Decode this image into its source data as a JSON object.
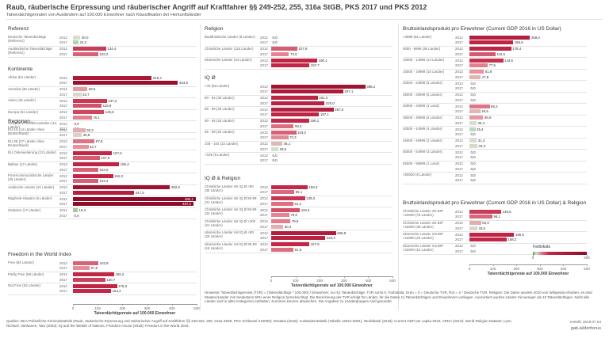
{
  "header": {
    "title": "Raub, räuberische Erpressung und räuberischer Angriff auf Kraftfahrer §§ 249-252, 255, 316a StGB, PKS 2017 und PKS 2012",
    "subtitle": "Tatverdächtigenraten von Ausländern auf 100.000 Einwohner nach Klassifikation der Herkunftsländer"
  },
  "panels": [
    {
      "title": "Referenz",
      "groups": [
        {
          "label": "Deutsche Tatverdächtige (Referenz)",
          "years": [
            2012,
            2017
          ],
          "values": [
            30.0,
            22.3
          ],
          "value_labels": [
            "30,0",
            "22,3"
          ]
        },
        {
          "label": "Ausländische Tatverdächtige (Referenz)",
          "years": [
            2012,
            2017
          ],
          "values": [
            134.4,
            102.2
          ],
          "value_labels": [
            "134,4",
            "102,2"
          ]
        }
      ]
    },
    {
      "title": "Kontinente",
      "groups": [
        {
          "label": "Afrika (54 Länder)",
          "years": [
            2012,
            2017
          ],
          "values": [
            318.4,
            424.5
          ],
          "value_labels": [
            "318,4",
            "424,5"
          ]
        },
        {
          "label": "Amerika (35 Länder)",
          "years": [
            2012,
            2017
          ],
          "values": [
            58.5,
            33.7
          ],
          "value_labels": [
            "58,5",
            "33,7"
          ]
        },
        {
          "label": "Asien (48 Länder)",
          "years": [
            2012,
            2017
          ],
          "values": [
            137.2,
            115.9
          ],
          "value_labels": [
            "137,2",
            "115,9"
          ]
        },
        {
          "label": "Europa (51 Länder)",
          "years": [
            2012,
            2017
          ],
          "values": [
            125.5,
            76.1
          ],
          "value_labels": [
            "125,5",
            "76,1"
          ]
        },
        {
          "label": "Ozeanien/Pazifik/Australien (13 Länder)",
          "years": [
            2012,
            2017
          ],
          "values": [
            0,
            0
          ],
          "value_labels": [
            "0,0",
            "0,0"
          ]
        }
      ]
    },
    {
      "title": "Regionen",
      "groups": [
        {
          "label": "EU-15 (14 Länder ohne Deutschland)",
          "years": [
            2012,
            2017
          ],
          "values": [
            50.3,
            35.8
          ],
          "value_labels": [
            "50,3",
            "35,8"
          ]
        },
        {
          "label": "EU-28 (27 Länder ohne Deutschland)",
          "years": [
            2012,
            2017
          ],
          "values": [
            87.8,
            62.7
          ],
          "value_labels": [
            "87,8",
            "62,7"
          ]
        },
        {
          "label": "EU Osterweiterung (13 Länder)",
          "years": [
            2012,
            2017
          ],
          "values": [
            157.6,
            107.9
          ],
          "value_labels": [
            "157,6",
            "107,9"
          ]
        },
        {
          "label": "Balkan (12 Länder)",
          "years": [
            2012,
            2017
          ],
          "values": [
            186.4,
            102.5
          ],
          "value_labels": [
            "186,4",
            "102,5"
          ]
        },
        {
          "label": "Post-Kommunistische Länder (26 Länder)",
          "years": [
            2012,
            2017
          ],
          "values": [
            162.0,
            102.4
          ],
          "value_labels": [
            "162,0",
            "102,4"
          ]
        },
        {
          "label": "Arabische Länder (21 Länder)",
          "years": [
            2012,
            2017
          ],
          "values": [
            392.6,
            247.5
          ],
          "value_labels": [
            "392,6",
            "247,5"
          ]
        },
        {
          "label": "Maghreb-Staaten (5 Länder)",
          "years": [
            2012,
            2017
          ],
          "values": [
            496.1,
            487.2
          ],
          "value_labels": [
            "496,1",
            "487,2"
          ]
        },
        {
          "label": "Ostasien (17 Länder)",
          "years": [
            2012,
            2017
          ],
          "values": [
            19.3,
            0
          ],
          "value_labels": [
            "19,3",
            "0,0"
          ]
        }
      ]
    },
    {
      "title": "Freedom in the World Index",
      "groups": [
        {
          "label": "Free (84 Länder)",
          "years": [
            2012,
            2017
          ],
          "values": [
            102.8,
            67.6
          ],
          "value_labels": [
            "102,8",
            "67,6"
          ]
        },
        {
          "label": "Partly Free (58 Länder)",
          "years": [
            2012,
            2017
          ],
          "values": [
            166.2,
            130.7
          ],
          "value_labels": [
            "166,2",
            "130,7"
          ]
        },
        {
          "label": "Not Free (52 Länder)",
          "years": [
            2012,
            2017
          ],
          "values": [
            178.3,
            154.2
          ],
          "value_labels": [
            "178,3",
            "154,2"
          ]
        }
      ]
    },
    {
      "title": "Religion",
      "groups": [
        {
          "label": "Buddhistische Länder (8 Länder)",
          "years": [
            2012,
            2017
          ],
          "values": [
            0,
            0
          ],
          "value_labels": [
            "0,0",
            "0,0"
          ]
        },
        {
          "label": "Christliche Länder (115 Länder)",
          "years": [
            2012,
            2017
          ],
          "values": [
            107.8,
            73.5
          ],
          "value_labels": [
            "107,8",
            "73,5"
          ]
        },
        {
          "label": "Islamische Länder (34 Länder)",
          "years": [
            2012,
            2017
          ],
          "values": [
            190.1,
            157.7
          ],
          "value_labels": [
            "190,1",
            "157,7"
          ]
        }
      ]
    },
    {
      "title": "IQ Ø",
      "groups": [
        {
          "label": "<76 (50 Länder)",
          "years": [
            2012,
            2017
          ],
          "values": [
            388.2,
            297.1
          ],
          "value_labels": [
            "388,2",
            "297,1"
          ]
        },
        {
          "label": "80 - 84 (35 Länder)",
          "years": [
            2012,
            2017
          ],
          "values": [
            191.3,
            220.0
          ],
          "value_labels": [
            "191,3",
            "220,0"
          ]
        },
        {
          "label": "85 - 89 (25 Länder)",
          "years": [
            2012,
            2017
          ],
          "values": [
            257.0,
            197.1
          ],
          "value_labels": [
            "257,0",
            "197,1"
          ]
        },
        {
          "label": "90 - 94 (25 Länder)",
          "years": [
            2012,
            2017
          ],
          "values": [
            156.1,
            93.0
          ],
          "value_labels": [
            "156,1",
            "93,0"
          ]
        },
        {
          "label": "95 - 99 (25 Länder)",
          "years": [
            2012,
            2017
          ],
          "values": [
            103.0,
            70.3
          ],
          "value_labels": [
            "103,0",
            "70,3"
          ]
        },
        {
          "label": "100 - 104 (22 Länder)",
          "years": [
            2012,
            2017
          ],
          "values": [
            46.1,
            29.6
          ],
          "value_labels": [
            "46,1",
            "29,6"
          ]
        },
        {
          "label": ">105 (9 Länder)",
          "years": [
            2012,
            2017
          ],
          "values": [
            0,
            0
          ],
          "value_labels": [
            "0,0",
            "0,0"
          ]
        }
      ]
    },
    {
      "title": "IQ Ø & Religion",
      "groups": [
        {
          "label": "Christliche Länder mit IQ Ø <80 (30 Länder)",
          "years": [
            2012,
            2017
          ],
          "values": [
            150.3,
            95.1
          ],
          "value_labels": [
            "150,3",
            "95,1"
          ]
        },
        {
          "label": "Christliche Länder mit IQ Ø 80-89 (31 Länder)",
          "years": [
            2012,
            2017
          ],
          "values": [
            139.3,
            91.2
          ],
          "value_labels": [
            "139,3",
            "91,2"
          ]
        },
        {
          "label": "Christliche Länder mit IQ Ø 90-99 (32 Länder)",
          "years": [
            2012,
            2017
          ],
          "values": [
            118.3,
            75.0
          ],
          "value_labels": [
            "118,3",
            "75,0"
          ]
        },
        {
          "label": "Christliche Länder mit IQ Ø >100 (21 Länder)",
          "years": [
            2012,
            2017
          ],
          "values": [
            79.5,
            50.2
          ],
          "value_labels": [
            "79,5",
            "50,2"
          ]
        },
        {
          "label": "Islamische Länder mit IQ Ø <80 (20 Länder)",
          "years": [
            2012,
            2017
          ],
          "values": [
            266.9,
            223.2
          ],
          "value_labels": [
            "266,9",
            "223,2"
          ]
        },
        {
          "label": "Islamische Länder mit IQ Ø 80-89 (15 Länder)",
          "years": [
            2012,
            2017
          ],
          "values": [
            157.5,
            91.9
          ],
          "value_labels": [
            "157,5",
            "91,9"
          ]
        }
      ]
    },
    {
      "title": "Bruttoinlandsprodukt pro Einwohner (Current GDP 2016 in US Dollar)",
      "groups": [
        {
          "label": "<4999 (91 Länder)",
          "years": [
            2012,
            2017
          ],
          "values": [
            258.0,
            186.5
          ],
          "value_labels": [
            "258,0",
            "186,5"
          ]
        },
        {
          "label": "5000 - 9999 (36 Länder)",
          "years": [
            2012,
            2017
          ],
          "values": [
            178.4,
            110.6
          ],
          "value_labels": [
            "178,4",
            "110,6"
          ]
        },
        {
          "label": "10000 - 14999 (14 Länder)",
          "years": [
            2012,
            2017
          ],
          "values": [
            143.6,
            77.5
          ],
          "value_labels": [
            "143,6",
            "77,5"
          ]
        },
        {
          "label": "15000 - 19999 (10 Länder)",
          "years": [
            2012,
            2017
          ],
          "values": [
            61.9,
            47.9
          ],
          "value_labels": [
            "61,9",
            "47,9"
          ]
        },
        {
          "label": "20000 - 24999 (5 Länder)",
          "years": [
            2012,
            2017
          ],
          "values": [
            0,
            0
          ],
          "value_labels": [
            "0,0",
            "0,0"
          ]
        },
        {
          "label": "25000 - 29999 (5 Länder)",
          "years": [
            2012,
            2017
          ],
          "values": [
            0,
            0
          ],
          "value_labels": [
            "0,0",
            "0,0"
          ]
        },
        {
          "label": "30000 - 34999 (1 Land)",
          "years": [
            2012,
            2017
          ],
          "values": [
            86.3,
            46.5
          ],
          "value_labels": [
            "86,3",
            "46,5"
          ]
        },
        {
          "label": "35000 - 39999 (6 Länder)",
          "years": [
            2012,
            2017
          ],
          "values": [
            58.6,
            30.4
          ],
          "value_labels": [
            "58,6",
            "30,4"
          ]
        },
        {
          "label": "40000 - 44999 (4 Länder)",
          "years": [
            2012,
            2017
          ],
          "values": [
            25.4,
            0
          ],
          "value_labels": [
            "25,4",
            "0,0"
          ]
        },
        {
          "label": "45000 - 49999 (2 Länder)",
          "years": [
            2012,
            2017
          ],
          "values": [
            31.4,
            33.3
          ],
          "value_labels": [
            "31,4",
            "33,3"
          ]
        },
        {
          "label": "50000 - 54999 (3 Länder)",
          "years": [
            2012,
            2017
          ],
          "values": [
            0,
            0
          ],
          "value_labels": [
            "0,0",
            "0,0"
          ]
        },
        {
          "label": "55000 - 59999 (1 Land)",
          "years": [
            2012,
            2017
          ],
          "values": [
            0,
            0
          ],
          "value_labels": [
            "0,0",
            "0,0"
          ]
        },
        {
          "label": ">60000 (6 Länder)",
          "years": [
            2012,
            2017
          ],
          "values": [
            0,
            0
          ],
          "value_labels": [
            "0,0",
            "0,0"
          ]
        }
      ]
    },
    {
      "title": "Bruttoinlandsprodukt pro Einwohner (Current GDP 2016 in US Dollar) & Religion",
      "groups": [
        {
          "label": "Christliche Länder mit BIP <15000 (76 Länder)",
          "years": [
            2012,
            2017
          ],
          "values": [
            135.5,
            98.1
          ],
          "value_labels": [
            "135,5",
            "98,1"
          ]
        },
        {
          "label": "Christliche Länder mit BIP >15000 (39 Länder)",
          "years": [
            2012,
            2017
          ],
          "values": [
            50.0,
            33.6
          ],
          "value_labels": [
            "50,0",
            "33,6"
          ]
        },
        {
          "label": "Islamische Länder mit BIP <15000 (24 Länder)",
          "years": [
            2012,
            2017
          ],
          "values": [
            190.5,
            158.2
          ],
          "value_labels": [
            "190,5",
            "158,2"
          ]
        },
        {
          "label": "Islamische Länder mit BIP >15000 (10 Länder)",
          "years": [
            2012,
            2017
          ],
          "values": [
            0,
            0
          ],
          "value_labels": [
            "0,0",
            "0,0"
          ]
        }
      ]
    }
  ],
  "axes": [
    {
      "label": "Tatverdächtigenrate auf 100.000 Einwohner",
      "xlim": [
        0,
        500
      ],
      "xticks": [
        0,
        100,
        200,
        300,
        400,
        500
      ]
    },
    {
      "label": "Tatverdächtigenrate auf 100.000 Einwohner",
      "xlim": [
        0,
        500
      ],
      "xticks": [
        0,
        100,
        200,
        300,
        400,
        500
      ]
    },
    {
      "label": "Tatverdächtigenrate auf 100.000 Einwohner",
      "xlim": [
        0,
        500
      ],
      "xticks": [
        0,
        100,
        200,
        300,
        400,
        500
      ]
    }
  ],
  "color_scale": {
    "title": "Farbskala",
    "ticks": [
      0,
      500
    ]
  },
  "notes": "Hinweise: Tatverdächtigenrate (TVR) = (Tatverdächtige * 100.000) / Einwohner, nur 51 Tatverdächtige, TVR somit 0. Farbskala: Grün = 0 = Deutsche TVR, Rot = 4 * Deutsche TVR. Religion: Die Daten wurden 2010 von Wikipedia erhoben, es sind Staaten/Länder mit mindestens 50% einer Religion berücksichtigt. Die Berechnung der TVR erfolgt für Länder, für die Daten zu Tatverdächtigen und Einwohnern vorliegen. Aussortiert wurden Länder mit weniger als 10 Tatverdächtigen. Nicht alle Länder sind in allen Kategorien enthalten, Summen können abweichen. Die Angaben zu Ländergruppen sind gerundet.",
  "sources": "Quellen: BKA Polizeiliche Kriminalstatistik (Raub, räuberische Erpressung und räuberischer Angriff auf Kraftfahrer §§ 249-252, 255, 316a StGB, PKS Schlüssel 210000); Destatis (2018): Ausländerstatistik (Tabelle 12521-0001); Worldbank (2018): Current GDP per capita 2016; ARDA (2010): World Religion Dataset; Lynn, Richard; Vanhanen, Tatu (2002): IQ and the Wealth of Nations; Freedom House (2018): Freedom in the World 2018.",
  "credit": [
    "erstellt: 2018.07.04",
    "gab.ai/derhorus"
  ]
}
